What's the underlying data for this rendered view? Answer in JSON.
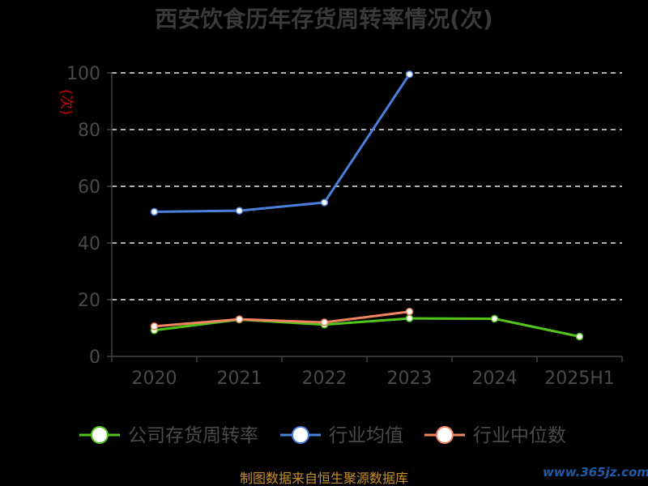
{
  "chart_data": {
    "type": "line",
    "title": "西安饮食历年存货周转率情况(次)",
    "ylabel": "(次)",
    "categories": [
      "2020",
      "2021",
      "2022",
      "2023",
      "2024",
      "2025H1"
    ],
    "ylim": [
      0,
      100
    ],
    "yticks": [
      0,
      20,
      40,
      60,
      80,
      100
    ],
    "grid": true,
    "legend_position": "bottom",
    "series": [
      {
        "name": "公司存货周转率",
        "color": "#52c41a",
        "values": [
          9.2,
          13.0,
          11.2,
          13.4,
          13.3,
          7.0
        ]
      },
      {
        "name": "行业均值",
        "color": "#4a7fdc",
        "values": [
          51.0,
          51.4,
          54.3,
          99.5,
          null,
          null
        ]
      },
      {
        "name": "行业中位数",
        "color": "#f4845f",
        "values": [
          10.6,
          13.1,
          12.0,
          15.8,
          null,
          null
        ]
      }
    ]
  },
  "footer": {
    "source": "制图数据来自恒生聚源数据库",
    "brand": "www.365jz.com"
  }
}
